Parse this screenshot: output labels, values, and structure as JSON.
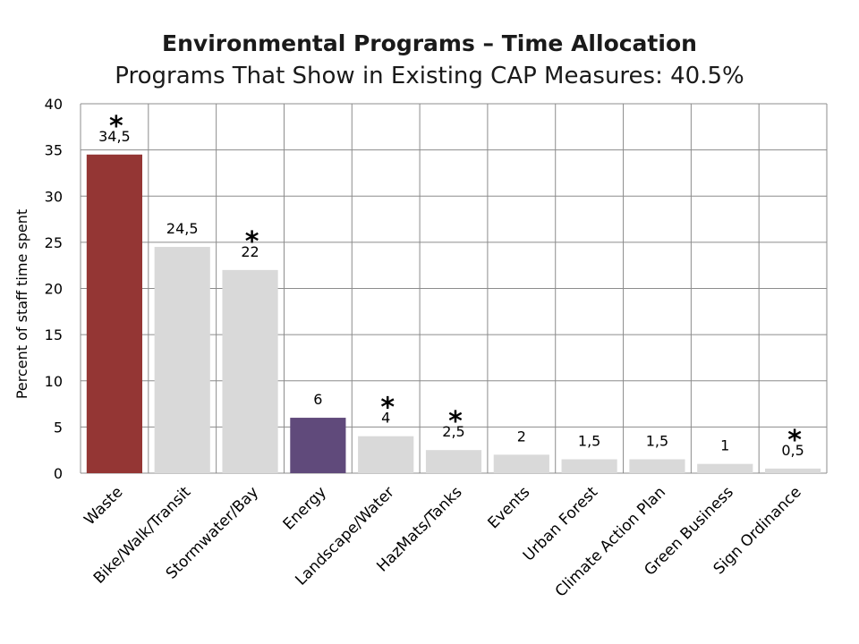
{
  "title": "Environmental Programs – Time Allocation",
  "subtitle": "Programs That Show in Existing CAP Measures:  40.5%",
  "chart_data": {
    "type": "bar",
    "ylabel": "Percent of staff time spent",
    "xlabel": "",
    "ylim": [
      0,
      40
    ],
    "yticks": [
      0,
      5,
      10,
      15,
      20,
      25,
      30,
      35,
      40
    ],
    "grid": true,
    "categories": [
      "Waste",
      "Bike/Walk/Transit",
      "Stormwater/Bay",
      "Energy",
      "Landscape/Water",
      "HazMats/Tanks",
      "Events",
      "Urban Forest",
      "Climate Action Plan",
      "Green Business",
      "Sign Ordinance"
    ],
    "values": [
      34.5,
      24.5,
      22,
      6,
      4,
      2.5,
      2,
      1.5,
      1.5,
      1,
      0.5
    ],
    "data_labels": [
      "34,5",
      "24,5",
      "22",
      "6",
      "4",
      "2,5",
      "2",
      "1,5",
      "1,5",
      "1",
      "0,5"
    ],
    "starred": [
      true,
      false,
      true,
      false,
      true,
      true,
      false,
      false,
      false,
      false,
      true
    ],
    "star_symbol": "*",
    "colors": [
      "#943634",
      "#d9d9d9",
      "#d9d9d9",
      "#604a7b",
      "#d9d9d9",
      "#d9d9d9",
      "#d9d9d9",
      "#d9d9d9",
      "#d9d9d9",
      "#d9d9d9",
      "#d9d9d9"
    ],
    "grid_color": "#8c8c8c"
  }
}
